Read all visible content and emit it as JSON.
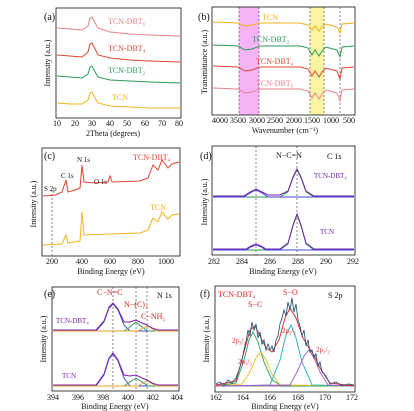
{
  "figure": {
    "panels": [
      {
        "id": "a",
        "letter": "(a)",
        "xlabel": "2Theta (degrees)",
        "ylabel": "Intensity (a.u.)",
        "xticks": [
          "10",
          "20",
          "30",
          "40",
          "50",
          "60",
          "70",
          "80"
        ],
        "curves": [
          {
            "name": "TCN-DBT₆",
            "color": "#e8828c"
          },
          {
            "name": "TCN-DBT₄",
            "color": "#dd4433"
          },
          {
            "name": "TCN-DBT₂",
            "color": "#2a9a5a"
          },
          {
            "name": "TCN",
            "color": "#f2b21a"
          }
        ]
      },
      {
        "id": "b",
        "letter": "(b)",
        "xlabel": "Wavenumber (cm⁻¹)",
        "ylabel": "Transmittance (a.u.)",
        "xticks": [
          "4000",
          "3500",
          "3000",
          "2500",
          "2000",
          "1500",
          "1000",
          "500"
        ],
        "curves": [
          {
            "name": "TCN",
            "color": "#f2b21a"
          },
          {
            "name": "TCN-DBT₂",
            "color": "#2a9a5a"
          },
          {
            "name": "TCN-DBT₄",
            "color": "#dd4433"
          },
          {
            "name": "TCN-DBT₆",
            "color": "#e8828c"
          }
        ],
        "highlight_colors": [
          "#f080f0",
          "#f7f07a"
        ]
      },
      {
        "id": "c",
        "letter": "(c)",
        "xlabel": "Binding Energy (eV)",
        "ylabel": "Intensity (a.u.)",
        "xticks": [
          "200",
          "400",
          "600",
          "800",
          "1000"
        ],
        "curves": [
          {
            "name": "TCN-DBT₄",
            "color": "#dd4433"
          },
          {
            "name": "TCN",
            "color": "#f2b21a"
          }
        ],
        "peak_labels": [
          "S 2p",
          "C 1s",
          "N 1s",
          "O 1s"
        ]
      },
      {
        "id": "d",
        "letter": "(d)",
        "corner": "C 1s",
        "xlabel": "Binding Energy (eV)",
        "ylabel": "Intensity (a.u.)",
        "xticks": [
          "282",
          "284",
          "286",
          "288",
          "290",
          "292"
        ],
        "curves": [
          {
            "name": "TCN-DBT₄",
            "color": "#7a1fb0"
          },
          {
            "name": "TCN",
            "color": "#7a1fb0"
          }
        ],
        "peak_labels": [
          "N−C=N"
        ]
      },
      {
        "id": "e",
        "letter": "(e)",
        "corner": "N 1s",
        "xlabel": "Binding Energy (eV)",
        "ylabel": "Intensity (a.u.)",
        "xticks": [
          "394",
          "396",
          "398",
          "400",
          "402",
          "404"
        ],
        "curves": [
          {
            "name": "TCN-DBT₄",
            "color": "#7a1fb0"
          },
          {
            "name": "TCN",
            "color": "#7a1fb0"
          }
        ],
        "peak_labels": [
          "C−N=C",
          "N−(C)₃",
          "C−NH₂"
        ]
      },
      {
        "id": "f",
        "letter": "(f)",
        "corner": "S 2p",
        "sample": "TCN-DBT₄",
        "xlabel": "Binding Energy (eV)",
        "ylabel": "Intensity (a.u.)",
        "xticks": [
          "162",
          "164",
          "166",
          "168",
          "170",
          "172"
        ],
        "peak_labels": [
          "S−C",
          "S−O",
          "2p₃/₂",
          "2p₁/₂",
          "2p₃/₂",
          "2p₁/₂"
        ]
      }
    ]
  }
}
